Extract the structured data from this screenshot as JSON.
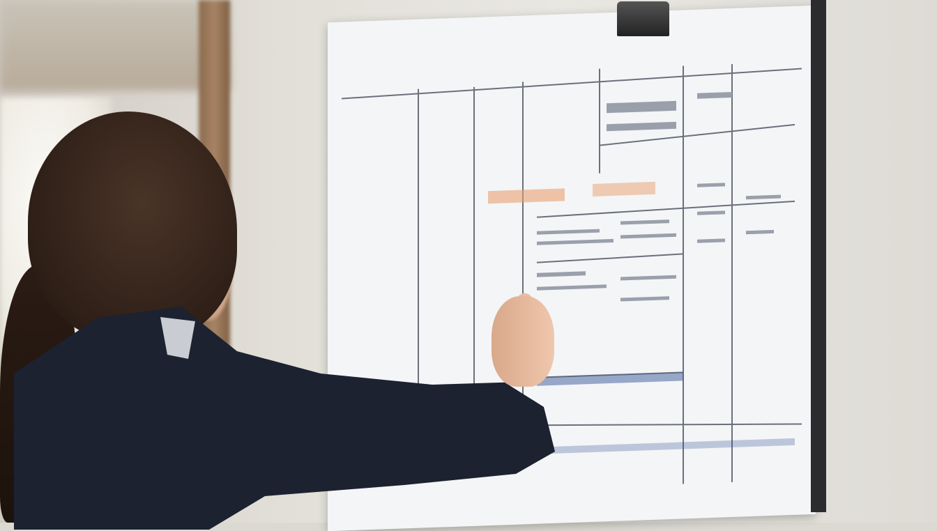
{
  "scene": {
    "description_tags": [
      "person",
      "whiteboard",
      "chart-poster",
      "office-wall"
    ],
    "colors": {
      "wall": "#e2dfd8",
      "board_paper": "#f4f5f7",
      "board_frame": "#2a2c30",
      "jacket": "#1c2230",
      "hair": "#2e1f17",
      "accent_orange": "#e8a070",
      "accent_blue": "#3a5a9a"
    }
  }
}
